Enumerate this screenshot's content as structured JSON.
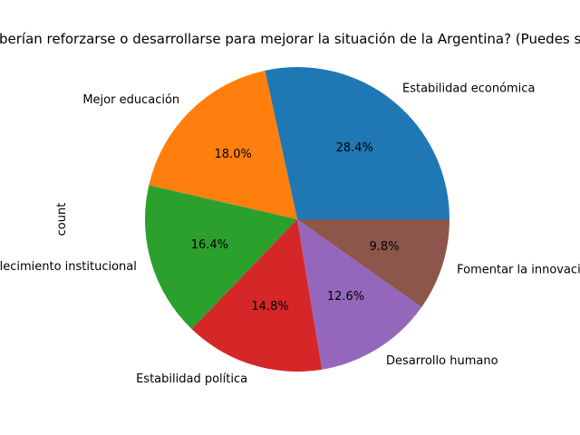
{
  "chart_data": {
    "type": "pie",
    "title": "¿Qué aspectos deberían reforzarse o desarrollarse para mejorar la situación de la Argentina? (Puedes seleccionar varias)",
    "ylabel": "count",
    "autopct_format": "%.1f%%",
    "start_angle_deg": 0,
    "direction": "counterclockwise",
    "slices": [
      {
        "label": "Estabilidad económica",
        "percent": 28.4,
        "color": "#1f77b4"
      },
      {
        "label": "Mejor educación",
        "percent": 18.0,
        "color": "#ff7f0e"
      },
      {
        "label": "Fortalecimiento institucional",
        "percent": 16.4,
        "color": "#2ca02c"
      },
      {
        "label": "Estabilidad política",
        "percent": 14.8,
        "color": "#d62728"
      },
      {
        "label": "Desarrollo humano",
        "percent": 12.6,
        "color": "#9467bd"
      },
      {
        "label": "Fomentar la innovación",
        "percent": 9.8,
        "color": "#8c564b"
      }
    ]
  }
}
